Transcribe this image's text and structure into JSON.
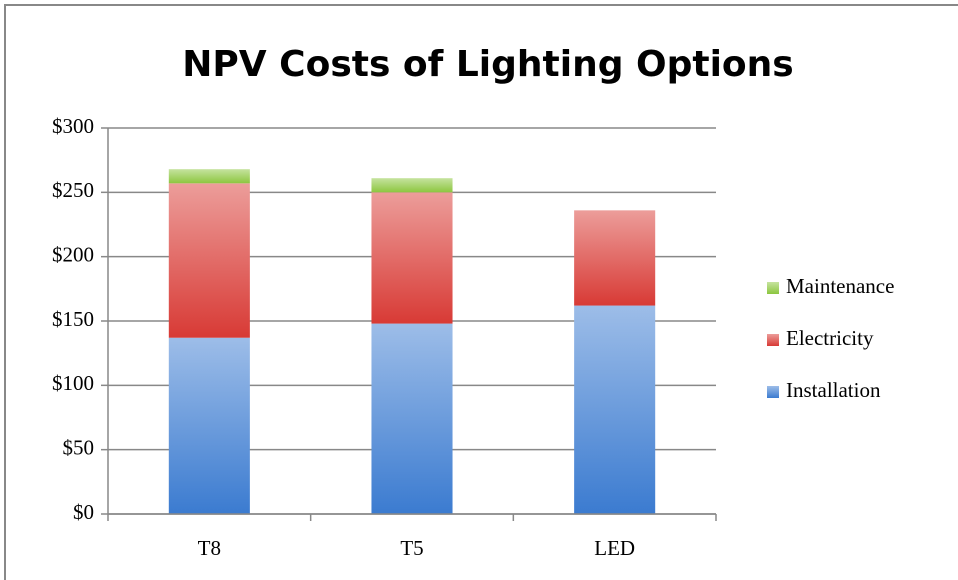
{
  "chart_data": {
    "type": "bar",
    "stacked": true,
    "title": "NPV Costs of Lighting Options",
    "categories": [
      "T8",
      "T5",
      "LED"
    ],
    "series": [
      {
        "name": "Installation",
        "color": "#3b7bd0",
        "values": [
          137,
          148,
          162
        ]
      },
      {
        "name": "Electricity",
        "color": "#d83a35",
        "values": [
          120,
          102,
          74
        ]
      },
      {
        "name": "Maintenance",
        "color": "#8cc63f",
        "values": [
          11,
          11,
          0
        ]
      }
    ],
    "ylim": [
      0,
      300
    ],
    "yticks": [
      {
        "value": 0,
        "label": "$0"
      },
      {
        "value": 50,
        "label": "$50"
      },
      {
        "value": 100,
        "label": "$100"
      },
      {
        "value": 150,
        "label": "$150"
      },
      {
        "value": 200,
        "label": "$200"
      },
      {
        "value": 250,
        "label": "$250"
      },
      {
        "value": 300,
        "label": "$300"
      }
    ],
    "grid": true,
    "legend": "right"
  }
}
